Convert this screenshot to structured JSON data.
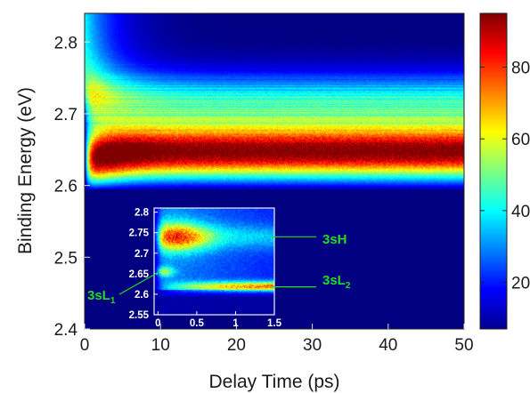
{
  "chart_data": [
    {
      "type": "heatmap",
      "xlabel": "Delay Time (ps)",
      "ylabel": "Binding Energy (eV)",
      "xlim": [
        0,
        50
      ],
      "ylim": [
        2.4,
        2.84
      ],
      "x_ticks": [
        "0",
        "10",
        "20",
        "30",
        "40",
        "50"
      ],
      "y_ticks": [
        "2.4",
        "2.5",
        "2.6",
        "2.7",
        "2.8"
      ],
      "colormap": "jet",
      "colorbar": {
        "range": [
          7,
          95
        ],
        "ticks": [
          "20",
          "40",
          "60",
          "80"
        ]
      },
      "features": [
        {
          "center_energy_eV": 2.645,
          "peak_delay_ps": 3,
          "peak_intensity": 93,
          "late_intensity": 85,
          "width_eV": 0.035
        },
        {
          "center_energy_eV": 2.71,
          "peak_intensity": 38,
          "width_eV": 0.045
        },
        {
          "center_energy_eV": 2.79,
          "peak_delay_ps": 0,
          "peak_intensity": 32,
          "decay_ps": 4
        }
      ],
      "signal_cutoff_eV": 2.595,
      "background_intensity": 7
    },
    {
      "type": "heatmap",
      "role": "inset",
      "xlim": [
        -0.05,
        1.5
      ],
      "ylim": [
        2.55,
        2.81
      ],
      "x_ticks": [
        "0",
        "0.5",
        "1",
        "1.5"
      ],
      "y_ticks": [
        "2.55",
        "2.6",
        "2.65",
        "2.7",
        "2.75",
        "2.8"
      ],
      "features": [
        {
          "name": "3sH",
          "center_energy_eV": 2.74,
          "width_eV": 0.035,
          "peak_delay_ps": 0.25,
          "peak_intensity": 40
        },
        {
          "name": "3sL2",
          "center_energy_eV": 2.618,
          "width_eV": 0.012,
          "rise_ps": 1.0,
          "peak_intensity": 70
        },
        {
          "name": "3sL1",
          "center_energy_eV": 2.655,
          "width_eV": 0.012,
          "peak_delay_ps": 0.05,
          "peak_intensity": 30
        }
      ],
      "labels": [
        {
          "text": "3sH",
          "main": "3sH",
          "sub": ""
        },
        {
          "text": "3sL2",
          "main": "3sL",
          "sub": "2"
        },
        {
          "text": "3sL1",
          "main": "3sL",
          "sub": "1"
        }
      ]
    }
  ]
}
